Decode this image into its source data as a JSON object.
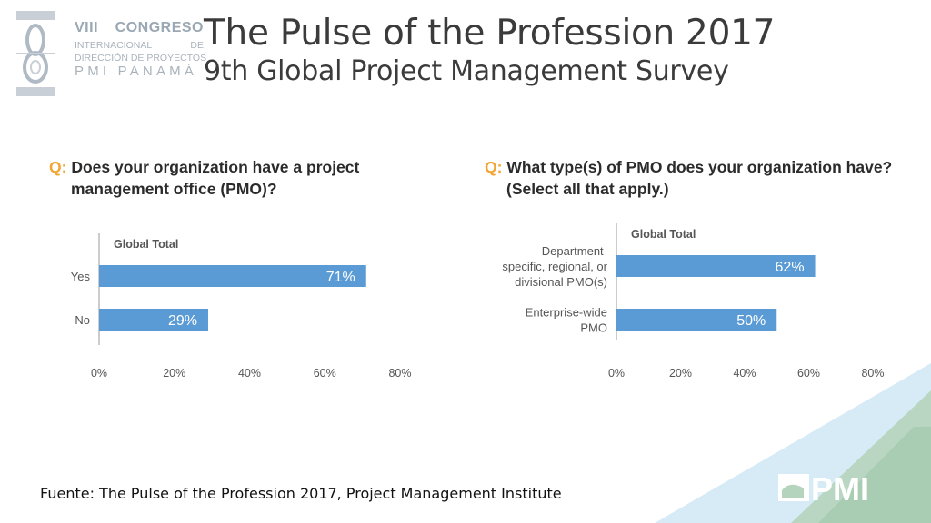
{
  "logo": {
    "line1_a": "VIII",
    "line1_b": "CONGRESO",
    "line2_a": "INTERNACIONAL",
    "line2_b": "DE",
    "line3": "DIRECCIÓN DE PROYECTOS",
    "line4": "PMI PANAMÁ"
  },
  "title": {
    "main": "The Pulse of the Profession 2017",
    "sub": "9th Global Project Management Survey"
  },
  "chart_data": [
    {
      "type": "bar",
      "orientation": "horizontal",
      "question_prefix": "Q:",
      "question_line1": "Does your organization have a project",
      "question_line2": "management office (PMO)?",
      "series_label": "Global Total",
      "categories": [
        "Yes",
        "No"
      ],
      "values": [
        71,
        29
      ],
      "value_labels": [
        "71%",
        "29%"
      ],
      "xticks": [
        "0%",
        "20%",
        "40%",
        "60%",
        "80%"
      ],
      "xlim": [
        0,
        80
      ]
    },
    {
      "type": "bar",
      "orientation": "horizontal",
      "question_prefix": "Q:",
      "question_line1": "What type(s) of PMO does your organization have?",
      "question_line2": "(Select all that apply.)",
      "series_label": "Global Total",
      "categories": [
        [
          "Department-",
          "specific, regional, or",
          "divisional PMO(s)"
        ],
        [
          "Enterprise-wide",
          "PMO"
        ]
      ],
      "values": [
        62,
        50
      ],
      "value_labels": [
        "62%",
        "50%"
      ],
      "xticks": [
        "0%",
        "20%",
        "40%",
        "60%",
        "80%"
      ],
      "xlim": [
        0,
        80
      ]
    }
  ],
  "source": "Fuente: The Pulse of the Profession 2017, Project Management Institute",
  "pmi_logo_text": "PMI",
  "colors": {
    "bar": "#5b9bd5",
    "accent": "#f2a533",
    "tri_light": "#d6ebf5",
    "tri_green": "#b5d4bd"
  }
}
